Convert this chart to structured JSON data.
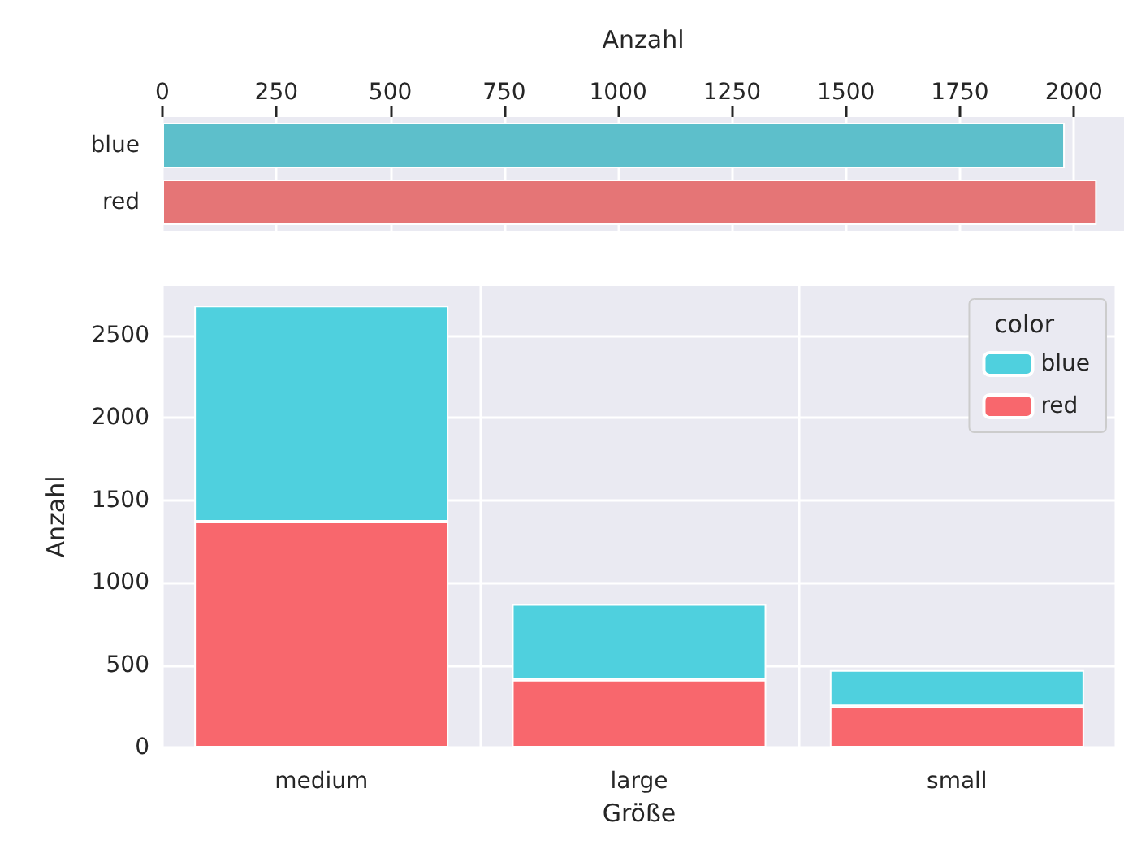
{
  "chart_data": [
    {
      "type": "bar",
      "orientation": "horizontal",
      "categories": [
        "blue",
        "red"
      ],
      "values": [
        1980,
        2050
      ],
      "colors": [
        "#5dbfcb",
        "#e57576"
      ],
      "xlabel": "Anzahl",
      "xlim": [
        0,
        2110
      ],
      "xticks": [
        0,
        250,
        500,
        750,
        1000,
        1250,
        1500,
        1750,
        2000
      ],
      "grid": "x"
    },
    {
      "type": "bar",
      "stacked": true,
      "categories": [
        "medium",
        "large",
        "small"
      ],
      "series": [
        {
          "name": "red",
          "color": "#f8676d",
          "values": [
            1370,
            410,
            250
          ]
        },
        {
          "name": "blue",
          "color": "#4fd0de",
          "values": [
            1310,
            460,
            220
          ]
        }
      ],
      "xlabel": "Größe",
      "ylabel": "Anzahl",
      "ylim": [
        0,
        2800
      ],
      "yticks": [
        0,
        500,
        1000,
        1500,
        2000,
        2500
      ],
      "grid": true,
      "legend": "top right",
      "legend_title": "color"
    }
  ]
}
